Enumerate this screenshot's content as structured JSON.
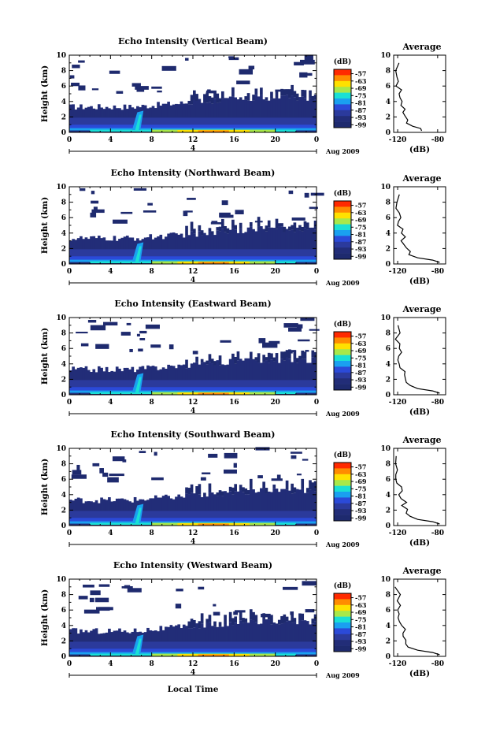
{
  "xlabel_global": "Local Time",
  "colorbar": {
    "unit": "(dB)",
    "ticks": [
      -57,
      -63,
      -69,
      -75,
      -81,
      -87,
      -93,
      -99
    ],
    "colors": [
      "#ff2a00",
      "#ff8c00",
      "#ffe100",
      "#a8e84a",
      "#19e0d5",
      "#1aa0f0",
      "#2b4ad8",
      "#2b3a9c",
      "#222d78",
      "#1e2a6e"
    ]
  },
  "chart_data": [
    {
      "type": "heatmap",
      "title": "Echo Intensity (Vertical Beam)",
      "ylabel": "Height (km)",
      "ylim": [
        0,
        10
      ],
      "x_ticks": [
        "0",
        "4",
        "8",
        "12",
        "16",
        "20",
        "0"
      ],
      "date_marker": "4",
      "date_label": "Aug 2009",
      "colorbar_unit": "(dB)",
      "avg_title": "Average",
      "avg_xlabel": "(dB)",
      "avg_x_ticks": [
        "-120",
        "-80"
      ],
      "avg_y_ticks": [
        "0",
        "2",
        "4",
        "6",
        "8",
        "10"
      ],
      "avg_profile": [
        [
          -96,
          0.2
        ],
        [
          -97,
          0.5
        ],
        [
          -105,
          0.8
        ],
        [
          -110,
          1.2
        ],
        [
          -111,
          1.6
        ],
        [
          -112,
          2.1
        ],
        [
          -113,
          2.6
        ],
        [
          -114,
          3.0
        ],
        [
          -115,
          3.5
        ],
        [
          -116,
          4.0
        ],
        [
          -117,
          4.5
        ],
        [
          -118,
          5.0
        ],
        [
          -118,
          5.5
        ],
        [
          -119,
          6.0
        ],
        [
          -119,
          6.6
        ],
        [
          -120,
          7.2
        ],
        [
          -120,
          8.0
        ],
        [
          -120,
          9.0
        ]
      ]
    },
    {
      "type": "heatmap",
      "title": "Echo Intensity (Northward Beam)",
      "ylabel": "Height (km)",
      "ylim": [
        0,
        10
      ],
      "x_ticks": [
        "0",
        "4",
        "8",
        "12",
        "16",
        "20",
        "0"
      ],
      "date_marker": "4",
      "date_label": "Aug 2009",
      "colorbar_unit": "(dB)",
      "avg_title": "Average",
      "avg_xlabel": "(dB)",
      "avg_x_ticks": [
        "-120",
        "-80"
      ],
      "avg_y_ticks": [
        "0",
        "2",
        "4",
        "6",
        "8",
        "10"
      ],
      "avg_profile": [
        [
          -78,
          0.2
        ],
        [
          -85,
          0.5
        ],
        [
          -100,
          0.8
        ],
        [
          -108,
          1.2
        ],
        [
          -110,
          1.6
        ],
        [
          -112,
          2.1
        ],
        [
          -113,
          2.6
        ],
        [
          -114,
          3.0
        ],
        [
          -115,
          3.5
        ],
        [
          -116,
          4.0
        ],
        [
          -117,
          4.5
        ],
        [
          -118,
          5.0
        ],
        [
          -118,
          5.5
        ],
        [
          -119,
          6.0
        ],
        [
          -119,
          6.6
        ],
        [
          -120,
          7.2
        ],
        [
          -120,
          8.0
        ],
        [
          -120,
          9.0
        ]
      ]
    },
    {
      "type": "heatmap",
      "title": "Echo Intensity (Eastward Beam)",
      "ylabel": "Height (km)",
      "ylim": [
        0,
        10
      ],
      "x_ticks": [
        "0",
        "4",
        "8",
        "12",
        "16",
        "20",
        "0"
      ],
      "date_marker": "4",
      "date_label": "Aug 2009",
      "colorbar_unit": "(dB)",
      "avg_title": "Average",
      "avg_xlabel": "(dB)",
      "avg_x_ticks": [
        "-120",
        "-80"
      ],
      "avg_y_ticks": [
        "0",
        "2",
        "4",
        "6",
        "8",
        "10"
      ],
      "avg_profile": [
        [
          -78,
          0.2
        ],
        [
          -85,
          0.5
        ],
        [
          -100,
          0.8
        ],
        [
          -108,
          1.2
        ],
        [
          -110,
          1.6
        ],
        [
          -112,
          2.1
        ],
        [
          -113,
          2.6
        ],
        [
          -114,
          3.0
        ],
        [
          -115,
          3.5
        ],
        [
          -116,
          4.0
        ],
        [
          -117,
          4.5
        ],
        [
          -118,
          5.0
        ],
        [
          -118,
          5.5
        ],
        [
          -119,
          6.0
        ],
        [
          -119,
          6.6
        ],
        [
          -120,
          7.2
        ],
        [
          -120,
          8.0
        ],
        [
          -120,
          9.0
        ]
      ]
    },
    {
      "type": "heatmap",
      "title": "Echo Intensity (Southward Beam)",
      "ylabel": "Height (km)",
      "ylim": [
        0,
        10
      ],
      "x_ticks": [
        "0",
        "4",
        "8",
        "12",
        "16",
        "20",
        "0"
      ],
      "date_marker": "4",
      "date_label": "Aug 2009",
      "colorbar_unit": "(dB)",
      "avg_title": "Average",
      "avg_xlabel": "(dB)",
      "avg_x_ticks": [
        "-120",
        "-80"
      ],
      "avg_y_ticks": [
        "0",
        "2",
        "4",
        "6",
        "8",
        "10"
      ],
      "avg_profile": [
        [
          -78,
          0.2
        ],
        [
          -85,
          0.5
        ],
        [
          -100,
          0.8
        ],
        [
          -108,
          1.2
        ],
        [
          -110,
          1.6
        ],
        [
          -112,
          2.1
        ],
        [
          -113,
          2.6
        ],
        [
          -114,
          3.0
        ],
        [
          -115,
          3.5
        ],
        [
          -116,
          4.0
        ],
        [
          -117,
          4.5
        ],
        [
          -118,
          5.0
        ],
        [
          -118,
          5.5
        ],
        [
          -119,
          6.0
        ],
        [
          -119,
          6.6
        ],
        [
          -120,
          7.2
        ],
        [
          -120,
          8.0
        ],
        [
          -120,
          9.0
        ]
      ]
    },
    {
      "type": "heatmap",
      "title": "Echo Intensity (Westward Beam)",
      "ylabel": "Height (km)",
      "ylim": [
        0,
        10
      ],
      "x_ticks": [
        "0",
        "4",
        "8",
        "12",
        "16",
        "20",
        "0"
      ],
      "date_marker": "4",
      "date_label": "Aug 2009",
      "colorbar_unit": "(dB)",
      "avg_title": "Average",
      "avg_xlabel": "(dB)",
      "avg_x_ticks": [
        "-120",
        "-80"
      ],
      "avg_y_ticks": [
        "0",
        "2",
        "4",
        "6",
        "8",
        "10"
      ],
      "avg_profile": [
        [
          -78,
          0.2
        ],
        [
          -85,
          0.5
        ],
        [
          -100,
          0.8
        ],
        [
          -108,
          1.2
        ],
        [
          -110,
          1.6
        ],
        [
          -112,
          2.1
        ],
        [
          -113,
          2.6
        ],
        [
          -114,
          3.0
        ],
        [
          -115,
          3.5
        ],
        [
          -116,
          4.0
        ],
        [
          -117,
          4.5
        ],
        [
          -118,
          5.0
        ],
        [
          -118,
          5.5
        ],
        [
          -119,
          6.0
        ],
        [
          -119,
          6.6
        ],
        [
          -120,
          7.2
        ],
        [
          -120,
          8.0
        ],
        [
          -120,
          9.0
        ]
      ]
    }
  ]
}
